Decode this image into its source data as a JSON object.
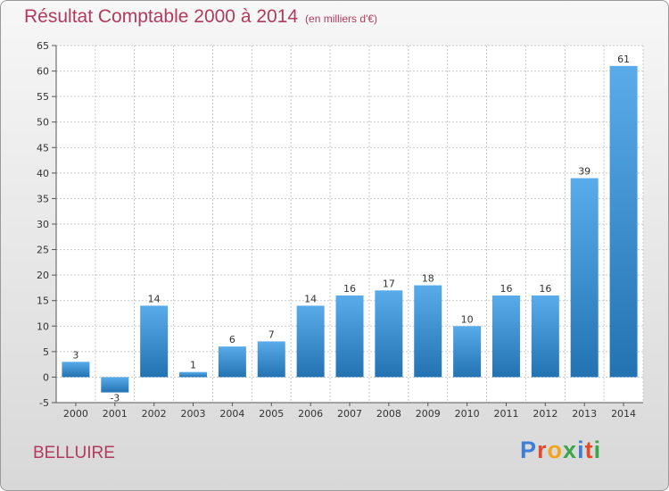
{
  "header": {
    "title": "Résultat Comptable 2000 à 2014",
    "subtitle": "(en milliers d'€)"
  },
  "footer": {
    "commune": "BELLUIRE",
    "logo_text": "Proxiti",
    "logo_colors": [
      "#3d7fd6",
      "#e14a2a",
      "#f2a51a",
      "#3aa647",
      "#3d7fd6",
      "#e14a2a",
      "#3aa647"
    ]
  },
  "colors": {
    "title": "#b23a5e",
    "bar_top": "#5aabea",
    "bar_bottom": "#2373b3",
    "grid": "#c8c8c8"
  },
  "chart_data": {
    "type": "bar",
    "categories": [
      "2000",
      "2001",
      "2002",
      "2003",
      "2004",
      "2005",
      "2006",
      "2007",
      "2008",
      "2009",
      "2010",
      "2011",
      "2012",
      "2013",
      "2014"
    ],
    "values": [
      3,
      -3,
      14,
      1,
      6,
      7,
      14,
      16,
      17,
      18,
      10,
      16,
      16,
      39,
      61
    ],
    "ylim": [
      -5,
      65
    ],
    "yticks": [
      -5,
      0,
      5,
      10,
      15,
      20,
      25,
      30,
      35,
      40,
      45,
      50,
      55,
      60,
      65
    ],
    "grid": true,
    "xlabel": "",
    "ylabel": ""
  }
}
